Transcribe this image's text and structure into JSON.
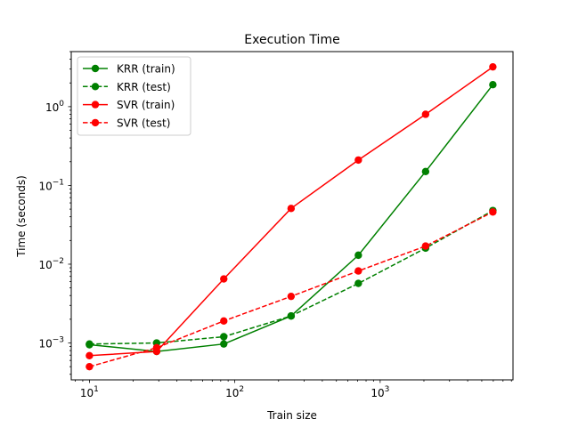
{
  "chart_data": {
    "type": "line",
    "title": "Execution Time",
    "xlabel": "Train size",
    "ylabel": "Time (seconds)",
    "xscale": "log",
    "yscale": "log",
    "xlim": [
      7.5,
      8200
    ],
    "ylim": [
      0.00034,
      5.0
    ],
    "grid": false,
    "legend_position": "top-left",
    "x_ticks": [
      {
        "value": 10,
        "base": "10",
        "exp": "1"
      },
      {
        "value": 100,
        "base": "10",
        "exp": "2"
      },
      {
        "value": 1000,
        "base": "10",
        "exp": "3"
      }
    ],
    "y_ticks": [
      {
        "value": 0.001,
        "base": "10",
        "exp": "−3"
      },
      {
        "value": 0.01,
        "base": "10",
        "exp": "−2"
      },
      {
        "value": 0.1,
        "base": "10",
        "exp": "−1"
      },
      {
        "value": 1,
        "base": "10",
        "exp": "0"
      }
    ],
    "x": [
      10,
      29,
      84,
      244,
      708,
      2054,
      5960
    ],
    "series": [
      {
        "name": "KRR (train)",
        "color": "#008000",
        "linestyle": "solid",
        "values": [
          0.00095,
          0.00078,
          0.00097,
          0.0022,
          0.013,
          0.15,
          1.9
        ]
      },
      {
        "name": "KRR (test)",
        "color": "#008000",
        "linestyle": "dashed",
        "values": [
          0.00097,
          0.001,
          0.0012,
          0.0022,
          0.0057,
          0.016,
          0.048
        ]
      },
      {
        "name": "SVR (train)",
        "color": "#ff0000",
        "linestyle": "solid",
        "values": [
          0.00069,
          0.00078,
          0.0065,
          0.051,
          0.21,
          0.8,
          3.2
        ]
      },
      {
        "name": "SVR (test)",
        "color": "#ff0000",
        "linestyle": "dashed",
        "values": [
          0.0005,
          0.00087,
          0.0019,
          0.0039,
          0.0082,
          0.017,
          0.046
        ]
      }
    ]
  }
}
